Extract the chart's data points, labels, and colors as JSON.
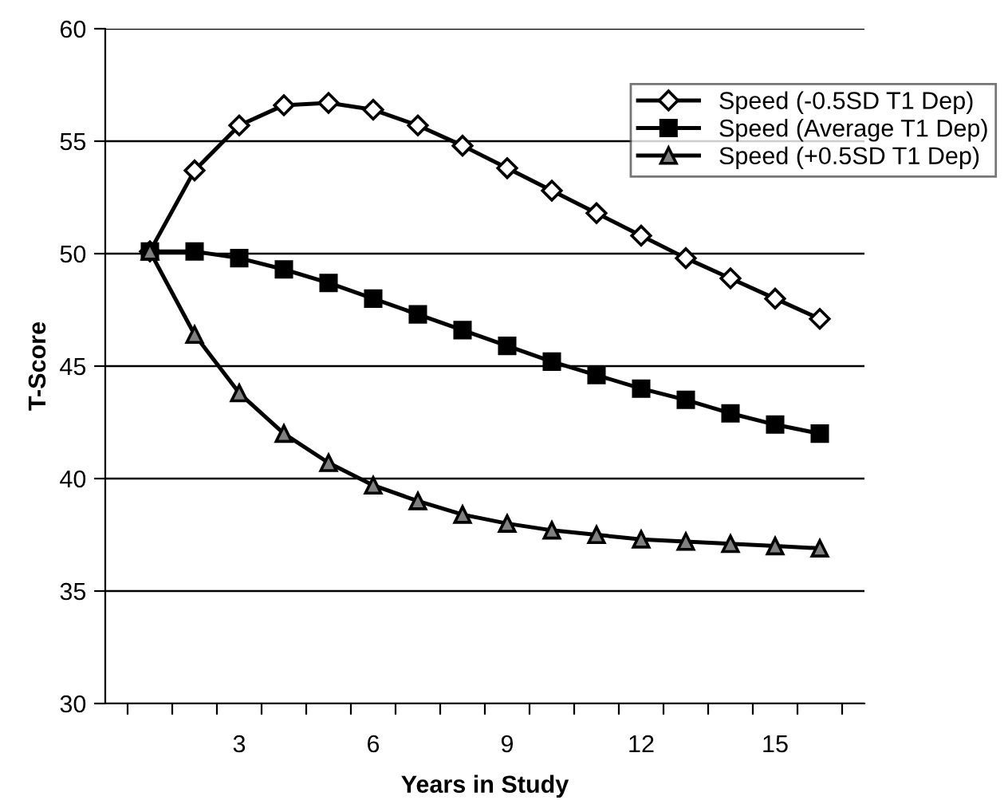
{
  "chart_data": {
    "type": "line",
    "xlabel": "Years in Study",
    "ylabel": "T-Score",
    "categories": [
      null,
      null,
      "3",
      null,
      null,
      "6",
      null,
      null,
      "9",
      null,
      null,
      "12",
      null,
      null,
      "15",
      null
    ],
    "ylim": [
      30,
      60
    ],
    "yticks": [
      30,
      35,
      40,
      45,
      50,
      55,
      60
    ],
    "grid": "y",
    "legend": "top right",
    "line_style": "solid",
    "series": [
      {
        "name": "Speed (-0.5SD T1 Dep)",
        "color": "#ffffff",
        "marker": "diamond",
        "values": [
          50.1,
          53.7,
          55.7,
          56.6,
          56.7,
          56.4,
          55.7,
          54.8,
          53.8,
          52.8,
          51.8,
          50.8,
          49.8,
          48.9,
          48.0,
          47.1
        ]
      },
      {
        "name": "Speed (Average T1 Dep)",
        "color": "#000000",
        "marker": "square",
        "values": [
          50.1,
          50.1,
          49.8,
          49.3,
          48.7,
          48.0,
          47.3,
          46.6,
          45.9,
          45.2,
          44.6,
          44.0,
          43.5,
          42.9,
          42.4,
          42.0
        ]
      },
      {
        "name": "Speed (+0.5SD T1 Dep)",
        "color": "#808080",
        "marker": "triangle",
        "values": [
          50.1,
          46.4,
          43.8,
          42.0,
          40.7,
          39.7,
          39.0,
          38.4,
          38.0,
          37.7,
          37.5,
          37.3,
          37.2,
          37.1,
          37.0,
          36.9
        ]
      }
    ]
  }
}
